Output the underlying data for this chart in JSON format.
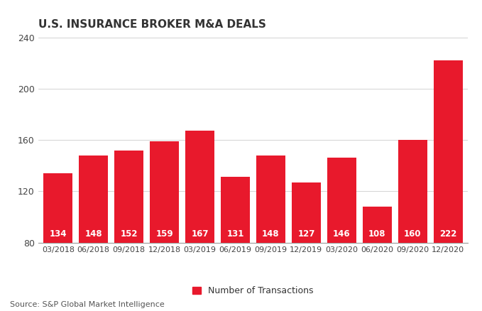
{
  "title": "U.S. INSURANCE BROKER M&A DEALS",
  "categories": [
    "03/2018",
    "06/2018",
    "09/2018",
    "12/2018",
    "03/2019",
    "06/2019",
    "09/2019",
    "12/2019",
    "03/2020",
    "06/2020",
    "09/2020",
    "12/2020"
  ],
  "values": [
    134,
    148,
    152,
    159,
    167,
    131,
    148,
    127,
    146,
    108,
    160,
    222
  ],
  "bar_color": "#E8192C",
  "ylim": [
    80,
    240
  ],
  "yticks": [
    80,
    120,
    160,
    200,
    240
  ],
  "label_color": "#FFFFFF",
  "label_fontsize": 8.5,
  "title_fontsize": 11,
  "legend_label": "Number of Transactions",
  "source_text": "Source: S&P Global Market Intelligence",
  "background_color": "#FFFFFF"
}
